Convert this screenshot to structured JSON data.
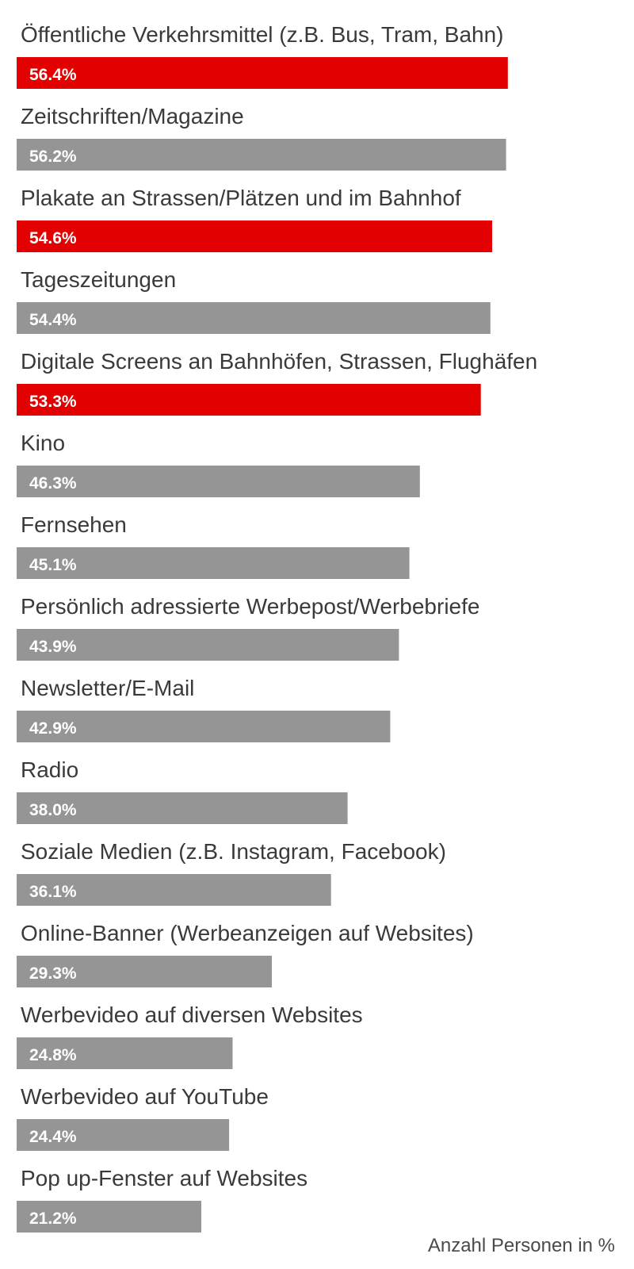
{
  "chart_data": {
    "type": "bar",
    "orientation": "horizontal",
    "categories": [
      "Öffentliche Verkehrsmittel (z.B. Bus, Tram, Bahn)",
      "Zeitschriften/Magazine",
      "Plakate an Strassen/Plätzen und im Bahnhof",
      "Tageszeitungen",
      "Digitale Screens an Bahnhöfen, Strassen, Flughäfen",
      "Kino",
      "Fernsehen",
      "Persönlich adressierte Werbepost/Werbebriefe",
      "Newsletter/E-Mail",
      "Radio",
      "Soziale Medien (z.B. Instagram, Facebook)",
      "Online-Banner (Werbeanzeigen auf Websites)",
      "Werbevideo auf diversen Websites",
      "Werbevideo auf YouTube",
      "Pop up-Fenster auf Websites"
    ],
    "values": [
      56.4,
      56.2,
      54.6,
      54.4,
      53.3,
      46.3,
      45.1,
      43.9,
      42.9,
      38.0,
      36.1,
      29.3,
      24.8,
      24.4,
      21.2
    ],
    "value_labels": [
      "56.4%",
      "56.2%",
      "54.6%",
      "54.4%",
      "53.3%",
      "46.3%",
      "45.1%",
      "43.9%",
      "42.9%",
      "38.0%",
      "36.1%",
      "29.3%",
      "24.8%",
      "24.4%",
      "21.2%"
    ],
    "highlighted": [
      true,
      false,
      true,
      false,
      true,
      false,
      false,
      false,
      false,
      false,
      false,
      false,
      false,
      false,
      false
    ],
    "colors": {
      "highlight": "#e30000",
      "default": "#959595"
    },
    "xlim": [
      0,
      72.8
    ],
    "note": "Anzahl Personen in %",
    "title": "",
    "xlabel": "",
    "ylabel": ""
  }
}
